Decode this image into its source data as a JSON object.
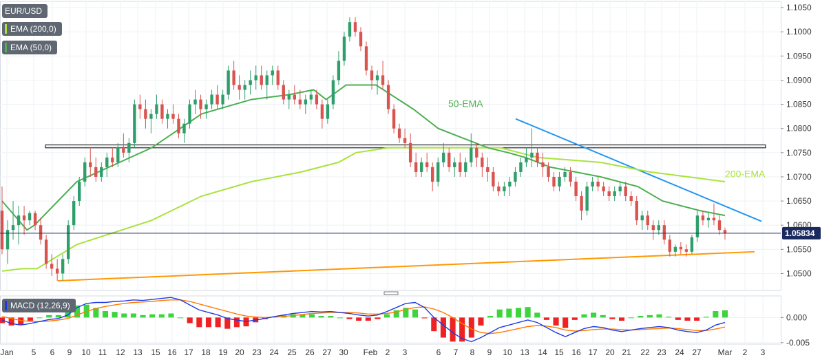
{
  "legend": {
    "symbol": "EUR/USD",
    "ema200": "EMA (200,0)",
    "ema50": "EMA (50,0)",
    "macd": "MACD (12,26,9)"
  },
  "colors": {
    "bull": "#2e9e6a",
    "bear": "#d9534f",
    "ema50": "#4caf50",
    "ema200": "#a9e33c",
    "trend_down": "#2196f3",
    "trend_up": "#ff9800",
    "horizontal_zone": "#000000",
    "macd_line": "#1e3ae6",
    "signal_line": "#ff7a00",
    "hist_pos": "#3dd43d",
    "hist_neg": "#ee2222",
    "price_label": "#1a2a5e"
  },
  "chart_data": [
    {
      "type": "candlestick",
      "title": "EUR/USD",
      "y_ticks": [
        "1.1050",
        "1.1000",
        "1.0950",
        "1.0900",
        "1.0850",
        "1.0800",
        "1.0750",
        "1.0700",
        "1.0650",
        "1.0600",
        "1.0550",
        "1.0500"
      ],
      "ylim": [
        1.0465,
        1.1063
      ],
      "x_ticks": [
        "Jan",
        "5",
        "6",
        "9",
        "10",
        "11",
        "12",
        "13",
        "15",
        "16",
        "17",
        "18",
        "19",
        "20",
        "23",
        "24",
        "25",
        "26",
        "27",
        "30",
        "Feb",
        "2",
        "3",
        "6",
        "7",
        "8",
        "9",
        "10",
        "13",
        "14",
        "15",
        "16",
        "17",
        "20",
        "21",
        "22",
        "23",
        "24",
        "27",
        "Mar",
        "2",
        "3"
      ],
      "current_price": "1.05834",
      "annotations": [
        "50-EMA",
        "200-EMA"
      ],
      "candles": [
        [
          1.063,
          1.068,
          1.054,
          1.055
        ],
        [
          1.055,
          1.061,
          1.052,
          1.059
        ],
        [
          1.059,
          1.065,
          1.057,
          1.06
        ],
        [
          1.06,
          1.064,
          1.056,
          1.062
        ],
        [
          1.062,
          1.064,
          1.058,
          1.061
        ],
        [
          1.061,
          1.063,
          1.06,
          1.0625
        ],
        [
          1.0625,
          1.063,
          1.059,
          1.06
        ],
        [
          1.06,
          1.0615,
          1.056,
          1.057
        ],
        [
          1.057,
          1.058,
          1.051,
          1.052
        ],
        [
          1.052,
          1.054,
          1.0495,
          1.051
        ],
        [
          1.051,
          1.053,
          1.0485,
          1.05
        ],
        [
          1.05,
          1.054,
          1.0485,
          1.053
        ],
        [
          1.053,
          1.061,
          1.052,
          1.06
        ],
        [
          1.06,
          1.066,
          1.059,
          1.065
        ],
        [
          1.065,
          1.07,
          1.064,
          1.069
        ],
        [
          1.069,
          1.074,
          1.068,
          1.073
        ],
        [
          1.073,
          1.076,
          1.07,
          1.072
        ],
        [
          1.072,
          1.074,
          1.069,
          1.07
        ],
        [
          1.07,
          1.073,
          1.069,
          1.072
        ],
        [
          1.072,
          1.075,
          1.07,
          1.074
        ],
        [
          1.074,
          1.076,
          1.072,
          1.073
        ],
        [
          1.073,
          1.077,
          1.072,
          1.076
        ],
        [
          1.076,
          1.079,
          1.074,
          1.075
        ],
        [
          1.075,
          1.078,
          1.073,
          1.077
        ],
        [
          1.077,
          1.086,
          1.076,
          1.085
        ],
        [
          1.085,
          1.087,
          1.082,
          1.084
        ],
        [
          1.084,
          1.086,
          1.08,
          1.082
        ],
        [
          1.082,
          1.084,
          1.079,
          1.083
        ],
        [
          1.083,
          1.087,
          1.082,
          1.085
        ],
        [
          1.085,
          1.086,
          1.081,
          1.082
        ],
        [
          1.082,
          1.084,
          1.08,
          1.083
        ],
        [
          1.083,
          1.085,
          1.081,
          1.082
        ],
        [
          1.082,
          1.083,
          1.078,
          1.079
        ],
        [
          1.079,
          1.082,
          1.077,
          1.081
        ],
        [
          1.081,
          1.086,
          1.08,
          1.085
        ],
        [
          1.085,
          1.088,
          1.083,
          1.086
        ],
        [
          1.086,
          1.087,
          1.082,
          1.084
        ],
        [
          1.084,
          1.086,
          1.082,
          1.085
        ],
        [
          1.085,
          1.088,
          1.084,
          1.087
        ],
        [
          1.087,
          1.089,
          1.084,
          1.085
        ],
        [
          1.085,
          1.088,
          1.084,
          1.087
        ],
        [
          1.087,
          1.093,
          1.086,
          1.092
        ],
        [
          1.092,
          1.094,
          1.088,
          1.089
        ],
        [
          1.089,
          1.091,
          1.086,
          1.088
        ],
        [
          1.088,
          1.09,
          1.086,
          1.089
        ],
        [
          1.089,
          1.092,
          1.087,
          1.09
        ],
        [
          1.09,
          1.093,
          1.088,
          1.091
        ],
        [
          1.091,
          1.093,
          1.088,
          1.089
        ],
        [
          1.089,
          1.092,
          1.086,
          1.091
        ],
        [
          1.091,
          1.093,
          1.089,
          1.092
        ],
        [
          1.092,
          1.093,
          1.088,
          1.089
        ],
        [
          1.089,
          1.09,
          1.085,
          1.086
        ],
        [
          1.086,
          1.088,
          1.084,
          1.087
        ],
        [
          1.087,
          1.089,
          1.085,
          1.086
        ],
        [
          1.086,
          1.088,
          1.084,
          1.085
        ],
        [
          1.085,
          1.087,
          1.083,
          1.086
        ],
        [
          1.086,
          1.088,
          1.085,
          1.087
        ],
        [
          1.087,
          1.088,
          1.084,
          1.085
        ],
        [
          1.085,
          1.086,
          1.08,
          1.082
        ],
        [
          1.082,
          1.086,
          1.081,
          1.085
        ],
        [
          1.085,
          1.091,
          1.084,
          1.09
        ],
        [
          1.09,
          1.096,
          1.089,
          1.094
        ],
        [
          1.094,
          1.1,
          1.093,
          1.099
        ],
        [
          1.099,
          1.103,
          1.098,
          1.102
        ],
        [
          1.102,
          1.103,
          1.099,
          1.1
        ],
        [
          1.1,
          1.101,
          1.096,
          1.097
        ],
        [
          1.097,
          1.098,
          1.091,
          1.092
        ],
        [
          1.092,
          1.093,
          1.088,
          1.09
        ],
        [
          1.09,
          1.092,
          1.087,
          1.091
        ],
        [
          1.091,
          1.094,
          1.088,
          1.089
        ],
        [
          1.089,
          1.09,
          1.083,
          1.084
        ],
        [
          1.084,
          1.085,
          1.079,
          1.08
        ],
        [
          1.08,
          1.081,
          1.077,
          1.078
        ],
        [
          1.078,
          1.08,
          1.076,
          1.077
        ],
        [
          1.077,
          1.079,
          1.072,
          1.073
        ],
        [
          1.073,
          1.075,
          1.07,
          1.071
        ],
        [
          1.071,
          1.074,
          1.07,
          1.073
        ],
        [
          1.073,
          1.075,
          1.071,
          1.072
        ],
        [
          1.072,
          1.073,
          1.067,
          1.069
        ],
        [
          1.069,
          1.074,
          1.068,
          1.073
        ],
        [
          1.073,
          1.077,
          1.072,
          1.075
        ],
        [
          1.075,
          1.076,
          1.071,
          1.072
        ],
        [
          1.072,
          1.074,
          1.07,
          1.073
        ],
        [
          1.073,
          1.075,
          1.07,
          1.071
        ],
        [
          1.071,
          1.074,
          1.07,
          1.073
        ],
        [
          1.073,
          1.079,
          1.072,
          1.076
        ],
        [
          1.076,
          1.077,
          1.072,
          1.074
        ],
        [
          1.074,
          1.075,
          1.07,
          1.072
        ],
        [
          1.072,
          1.074,
          1.069,
          1.071
        ],
        [
          1.071,
          1.072,
          1.067,
          1.068
        ],
        [
          1.068,
          1.069,
          1.066,
          1.067
        ],
        [
          1.067,
          1.069,
          1.066,
          1.068
        ],
        [
          1.068,
          1.07,
          1.066,
          1.069
        ],
        [
          1.069,
          1.072,
          1.068,
          1.071
        ],
        [
          1.071,
          1.074,
          1.07,
          1.073
        ],
        [
          1.073,
          1.076,
          1.072,
          1.074
        ],
        [
          1.074,
          1.08,
          1.072,
          1.075
        ],
        [
          1.075,
          1.076,
          1.072,
          1.073
        ],
        [
          1.073,
          1.075,
          1.07,
          1.072
        ],
        [
          1.072,
          1.073,
          1.069,
          1.07
        ],
        [
          1.07,
          1.071,
          1.067,
          1.068
        ],
        [
          1.068,
          1.071,
          1.067,
          1.07
        ],
        [
          1.07,
          1.072,
          1.069,
          1.071
        ],
        [
          1.071,
          1.072,
          1.068,
          1.069
        ],
        [
          1.069,
          1.07,
          1.065,
          1.066
        ],
        [
          1.066,
          1.067,
          1.061,
          1.063
        ],
        [
          1.063,
          1.069,
          1.062,
          1.068
        ],
        [
          1.068,
          1.07,
          1.067,
          1.069
        ],
        [
          1.069,
          1.07,
          1.067,
          1.068
        ],
        [
          1.068,
          1.069,
          1.066,
          1.067
        ],
        [
          1.067,
          1.068,
          1.065,
          1.066
        ],
        [
          1.066,
          1.068,
          1.065,
          1.067
        ],
        [
          1.067,
          1.069,
          1.066,
          1.068
        ],
        [
          1.068,
          1.069,
          1.065,
          1.066
        ],
        [
          1.066,
          1.067,
          1.064,
          1.065
        ],
        [
          1.065,
          1.066,
          1.06,
          1.061
        ],
        [
          1.061,
          1.063,
          1.059,
          1.062
        ],
        [
          1.062,
          1.063,
          1.059,
          1.06
        ],
        [
          1.06,
          1.061,
          1.057,
          1.059
        ],
        [
          1.059,
          1.061,
          1.058,
          1.06
        ],
        [
          1.06,
          1.061,
          1.056,
          1.057
        ],
        [
          1.057,
          1.058,
          1.0535,
          1.0545
        ],
        [
          1.0545,
          1.056,
          1.0535,
          1.0555
        ],
        [
          1.0555,
          1.0565,
          1.054,
          1.055
        ],
        [
          1.055,
          1.056,
          1.0535,
          1.0545
        ],
        [
          1.0545,
          1.058,
          1.054,
          1.0575
        ],
        [
          1.0575,
          1.063,
          1.0565,
          1.062
        ],
        [
          1.062,
          1.063,
          1.06,
          1.061
        ],
        [
          1.061,
          1.0625,
          1.0595,
          1.0615
        ],
        [
          1.0615,
          1.0645,
          1.06,
          1.061
        ],
        [
          1.061,
          1.062,
          1.058,
          1.059
        ],
        [
          1.059,
          1.0595,
          1.057,
          1.0583
        ]
      ],
      "ema50": [
        [
          0,
          1.065
        ],
        [
          10,
          1.059
        ],
        [
          13,
          1.06
        ],
        [
          30,
          1.069
        ],
        [
          60,
          1.076
        ],
        [
          80,
          1.083
        ],
        [
          100,
          1.086
        ],
        [
          115,
          1.087
        ],
        [
          125,
          1.088
        ],
        [
          130,
          1.086
        ],
        [
          138,
          1.089
        ],
        [
          150,
          1.089
        ],
        [
          165,
          1.084
        ],
        [
          175,
          1.08
        ],
        [
          185,
          1.078
        ],
        [
          195,
          1.076
        ],
        [
          203,
          1.075
        ],
        [
          210,
          1.074
        ],
        [
          220,
          1.072
        ],
        [
          240,
          1.07
        ],
        [
          255,
          1.068
        ],
        [
          265,
          1.065
        ],
        [
          280,
          1.063
        ],
        [
          290,
          1.062
        ]
      ],
      "ema200": [
        [
          0,
          1.0505
        ],
        [
          8,
          1.051
        ],
        [
          14,
          1.051
        ],
        [
          30,
          1.056
        ],
        [
          60,
          1.061
        ],
        [
          80,
          1.066
        ],
        [
          100,
          1.069
        ],
        [
          120,
          1.071
        ],
        [
          135,
          1.073
        ],
        [
          142,
          1.075
        ],
        [
          155,
          1.076
        ],
        [
          175,
          1.076
        ],
        [
          200,
          1.076
        ],
        [
          215,
          1.074
        ],
        [
          240,
          1.073
        ],
        [
          260,
          1.071
        ],
        [
          275,
          1.07
        ],
        [
          290,
          1.069
        ]
      ],
      "horizontal_zone": [
        1.076,
        1.0766
      ],
      "trend_down": [
        [
          1.082,
          1.0608
        ]
      ],
      "trend_up": [
        [
          1.0485,
          1.0545
        ]
      ]
    },
    {
      "type": "line",
      "title": "MACD (12,26,9)",
      "y_ticks": [
        "0.000",
        "-0.005"
      ],
      "ylim": [
        -0.0053,
        0.0043
      ],
      "series": [
        {
          "name": "MACD",
          "values": [
            -0.0005,
            -0.0012,
            -0.0015,
            -0.0012,
            -0.0008,
            -0.0004,
            -0.0002,
            0.0005,
            0.002,
            0.0028,
            0.003,
            0.003,
            0.0032,
            0.0033,
            0.0035,
            0.0034,
            0.0036,
            0.0038,
            0.004,
            0.0035,
            0.0025,
            0.0015,
            0.001,
            0.0005,
            -0.0002,
            -0.0005,
            -0.0008,
            -0.0005,
            -0.0002,
            0.0002,
            0.0005,
            0.0008,
            0.001,
            0.0012,
            0.0011,
            0.0012,
            0.001,
            0.0008,
            0.0005,
            0.0003,
            0.0005,
            0.0012,
            0.002,
            0.0028,
            0.003,
            0.002,
            0.0,
            -0.0015,
            -0.003,
            -0.0042,
            -0.0048,
            -0.004,
            -0.003,
            -0.002,
            -0.0015,
            -0.001,
            -0.0005,
            -0.001,
            -0.002,
            -0.003,
            -0.0038,
            -0.003,
            -0.0022,
            -0.0018,
            -0.002,
            -0.0025,
            -0.0028,
            -0.0025,
            -0.0022,
            -0.002,
            -0.0018,
            -0.002,
            -0.0025,
            -0.0028,
            -0.003,
            -0.0025,
            -0.0015,
            -0.001
          ]
        },
        {
          "name": "Signal",
          "values": [
            0.0002,
            -0.0002,
            -0.0006,
            -0.0008,
            -0.0008,
            -0.0007,
            -0.0005,
            -0.0002,
            0.0005,
            0.0012,
            0.0018,
            0.0022,
            0.0025,
            0.0028,
            0.003,
            0.0031,
            0.0032,
            0.0034,
            0.0035,
            0.0035,
            0.0032,
            0.0027,
            0.0022,
            0.0017,
            0.0012,
            0.0007,
            0.0003,
            0.0001,
            0.0,
            0.0001,
            0.0002,
            0.0004,
            0.0006,
            0.0008,
            0.0009,
            0.001,
            0.001,
            0.001,
            0.0009,
            0.0007,
            0.0007,
            0.0008,
            0.0011,
            0.0016,
            0.002,
            0.0021,
            0.0017,
            0.001,
            0.0,
            -0.0012,
            -0.0023,
            -0.003,
            -0.0032,
            -0.003,
            -0.0026,
            -0.0022,
            -0.0018,
            -0.0016,
            -0.0017,
            -0.002,
            -0.0025,
            -0.0027,
            -0.0026,
            -0.0024,
            -0.0023,
            -0.0023,
            -0.0024,
            -0.0025,
            -0.0024,
            -0.0023,
            -0.0022,
            -0.0021,
            -0.0022,
            -0.0024,
            -0.0026,
            -0.0026,
            -0.0023,
            -0.0019
          ]
        }
      ]
    }
  ]
}
